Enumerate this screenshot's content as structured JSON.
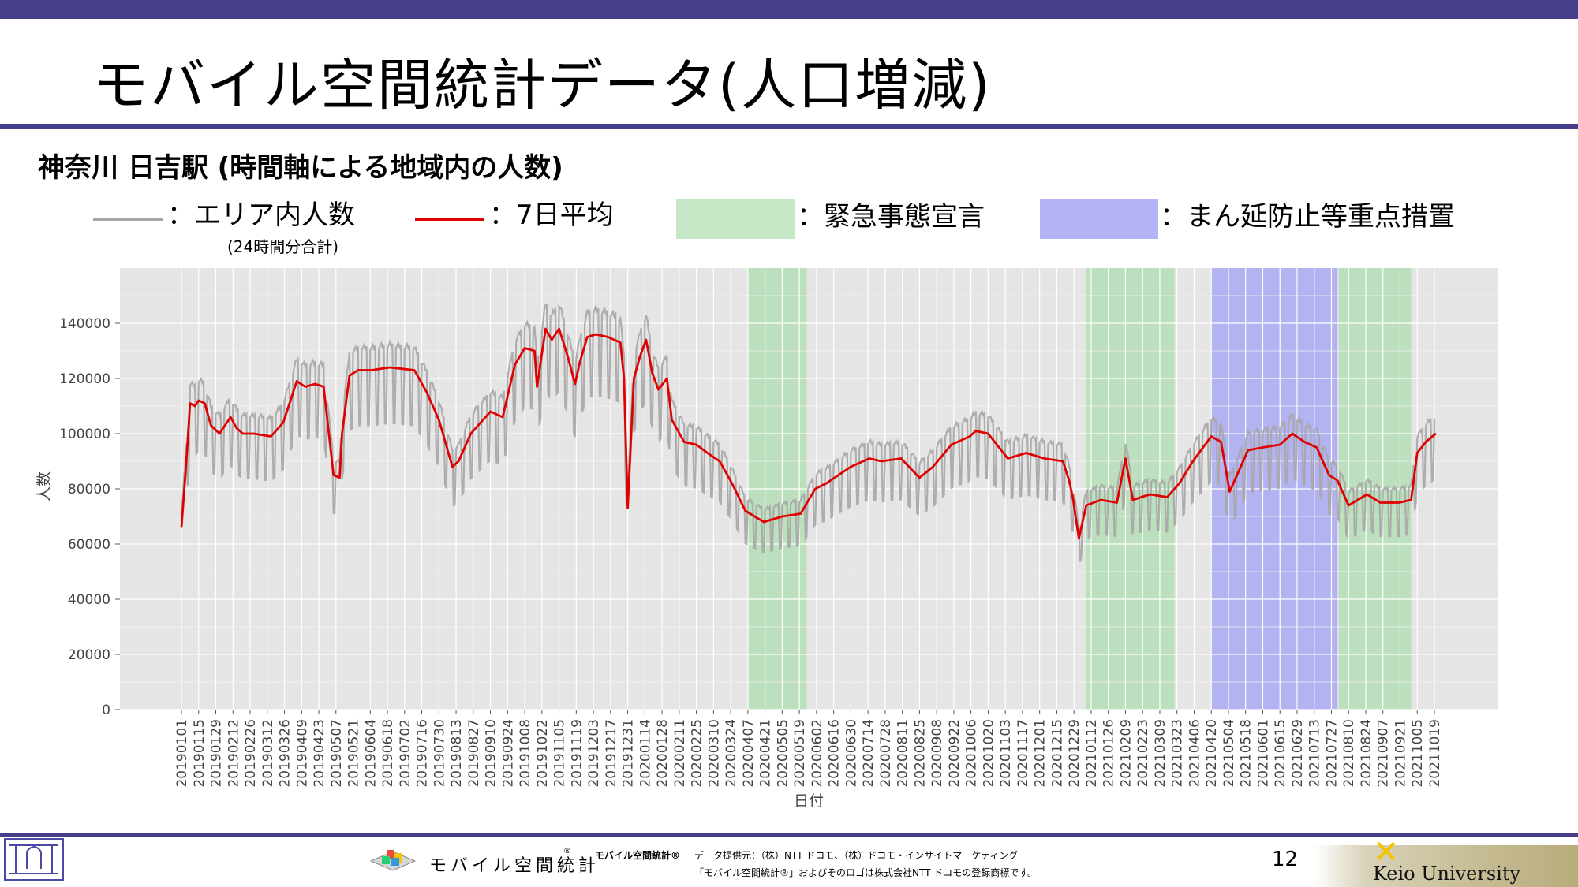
{
  "slide": {
    "title": "モバイル空間統計データ(人口増減)",
    "subtitle": "神奈川 日吉駅 (時間軸による地域内の人数)",
    "page_number": "12"
  },
  "legend": {
    "area_population": "：エリア内人数",
    "area_population_note": "(24時間分合計)",
    "avg7": "：7日平均",
    "emergency": "：緊急事態宣言",
    "priority_measures": "：まん延防止等重点措置"
  },
  "colors": {
    "accent_bar": "#453f8a",
    "raw_series": "#a6a6a6",
    "avg_series": "#e00000",
    "emergency": "#b5dfb6",
    "priority": "#aaaaf4",
    "plot_bg": "#e5e5e5"
  },
  "footer": {
    "logo_text": "モバイル空間統計",
    "logo_reg": "®",
    "brand_small": "モバイル空間統計®",
    "provider": "データ提供元：（株）NTT ドコモ、（株）ドコモ・インサイトマーケティング",
    "trademark": "「モバイル空間統計®」およびそのロゴは株式会社NTT ドコモの登録商標です。",
    "university": "Keio University"
  },
  "chart_data": {
    "type": "line",
    "xlabel": "日付",
    "ylabel": "人数",
    "ylim": [
      0,
      160000
    ],
    "yticks": [
      0,
      20000,
      40000,
      60000,
      80000,
      100000,
      120000,
      140000
    ],
    "xticks": [
      "20190101",
      "20190115",
      "20190129",
      "20190212",
      "20190226",
      "20190312",
      "20190326",
      "20190409",
      "20190423",
      "20190507",
      "20190521",
      "20190604",
      "20190618",
      "20190702",
      "20190716",
      "20190730",
      "20190813",
      "20190827",
      "20190910",
      "20190924",
      "20191008",
      "20191022",
      "20191105",
      "20191119",
      "20191203",
      "20191217",
      "20191231",
      "20200114",
      "20200128",
      "20200211",
      "20200225",
      "20200310",
      "20200324",
      "20200407",
      "20200421",
      "20200505",
      "20200519",
      "20200602",
      "20200616",
      "20200630",
      "20200714",
      "20200728",
      "20200811",
      "20200825",
      "20200908",
      "20200922",
      "20201006",
      "20201020",
      "20201103",
      "20201117",
      "20201201",
      "20201215",
      "20201229",
      "20210112",
      "20210126",
      "20210209",
      "20210223",
      "20210309",
      "20210323",
      "20210406",
      "20210420",
      "20210504",
      "20210518",
      "20210601",
      "20210615",
      "20210629",
      "20210713",
      "20210727",
      "20210810",
      "20210824",
      "20210907",
      "20210921",
      "20211005",
      "20211019"
    ],
    "grid": true,
    "shaded_periods": [
      {
        "name": "緊急事態宣言",
        "start": "20200407",
        "end": "20200525"
      },
      {
        "name": "緊急事態宣言",
        "start": "20210108",
        "end": "20210321"
      },
      {
        "name": "まん延防止等重点措置",
        "start": "20210420",
        "end": "20210801"
      },
      {
        "name": "緊急事態宣言",
        "start": "20210802",
        "end": "20210930"
      }
    ],
    "series": [
      {
        "name": "7日平均",
        "x": [
          "20190101",
          "20190105",
          "20190108",
          "20190112",
          "20190115",
          "20190120",
          "20190125",
          "20190201",
          "20190210",
          "20190215",
          "20190220",
          "20190301",
          "20190315",
          "20190325",
          "20190405",
          "20190412",
          "20190420",
          "20190427",
          "20190505",
          "20190510",
          "20190512",
          "20190518",
          "20190525",
          "20190605",
          "20190620",
          "20190710",
          "20190720",
          "20190730",
          "20190810",
          "20190815",
          "20190825",
          "20190910",
          "20190920",
          "20190930",
          "20191008",
          "20191016",
          "20191018",
          "20191025",
          "20191030",
          "20191105",
          "20191112",
          "20191118",
          "20191122",
          "20191128",
          "20191205",
          "20191215",
          "20191225",
          "20191228",
          "20191231",
          "20200105",
          "20200110",
          "20200115",
          "20200120",
          "20200125",
          "20200201",
          "20200205",
          "20200215",
          "20200225",
          "20200305",
          "20200315",
          "20200325",
          "20200405",
          "20200420",
          "20200505",
          "20200520",
          "20200601",
          "20200610",
          "20200630",
          "20200715",
          "20200725",
          "20200810",
          "20200825",
          "20200905",
          "20200920",
          "20201005",
          "20201010",
          "20201020",
          "20201105",
          "20201120",
          "20201205",
          "20201220",
          "20201225",
          "20201228",
          "20210102",
          "20210108",
          "20210120",
          "20210202",
          "20210209",
          "20210215",
          "20210301",
          "20210315",
          "20210325",
          "20210405",
          "20210415",
          "20210420",
          "20210428",
          "20210505",
          "20210520",
          "20210601",
          "20210615",
          "20210625",
          "20210705",
          "20210715",
          "20210725",
          "20210801",
          "20210810",
          "20210825",
          "20210905",
          "20210920",
          "20210930",
          "20211005",
          "20211012",
          "20211020"
        ],
        "y": [
          66000,
          90000,
          111000,
          110000,
          112000,
          111000,
          103000,
          100000,
          106000,
          102000,
          100000,
          100000,
          99000,
          104000,
          119000,
          117000,
          118000,
          117000,
          85000,
          84000,
          100000,
          121000,
          123000,
          123000,
          124000,
          123000,
          115000,
          105000,
          88000,
          90000,
          100000,
          108000,
          106000,
          125000,
          131000,
          130000,
          117000,
          138000,
          134000,
          138000,
          128000,
          118000,
          126000,
          135000,
          136000,
          135000,
          133000,
          120000,
          73000,
          120000,
          128000,
          134000,
          122000,
          116000,
          120000,
          105000,
          97000,
          96000,
          93000,
          90000,
          82000,
          72000,
          68000,
          70000,
          71000,
          80000,
          82000,
          88000,
          91000,
          90000,
          91000,
          84000,
          88000,
          96000,
          99000,
          101000,
          100000,
          91000,
          93000,
          91000,
          90000,
          83000,
          77000,
          62000,
          74000,
          76000,
          75000,
          91000,
          76000,
          78000,
          77000,
          82000,
          90000,
          96000,
          99000,
          97000,
          79000,
          94000,
          95000,
          96000,
          100000,
          97000,
          95000,
          85000,
          83000,
          74000,
          78000,
          75000,
          75000,
          76000,
          93000,
          97000,
          100000
        ]
      }
    ]
  }
}
